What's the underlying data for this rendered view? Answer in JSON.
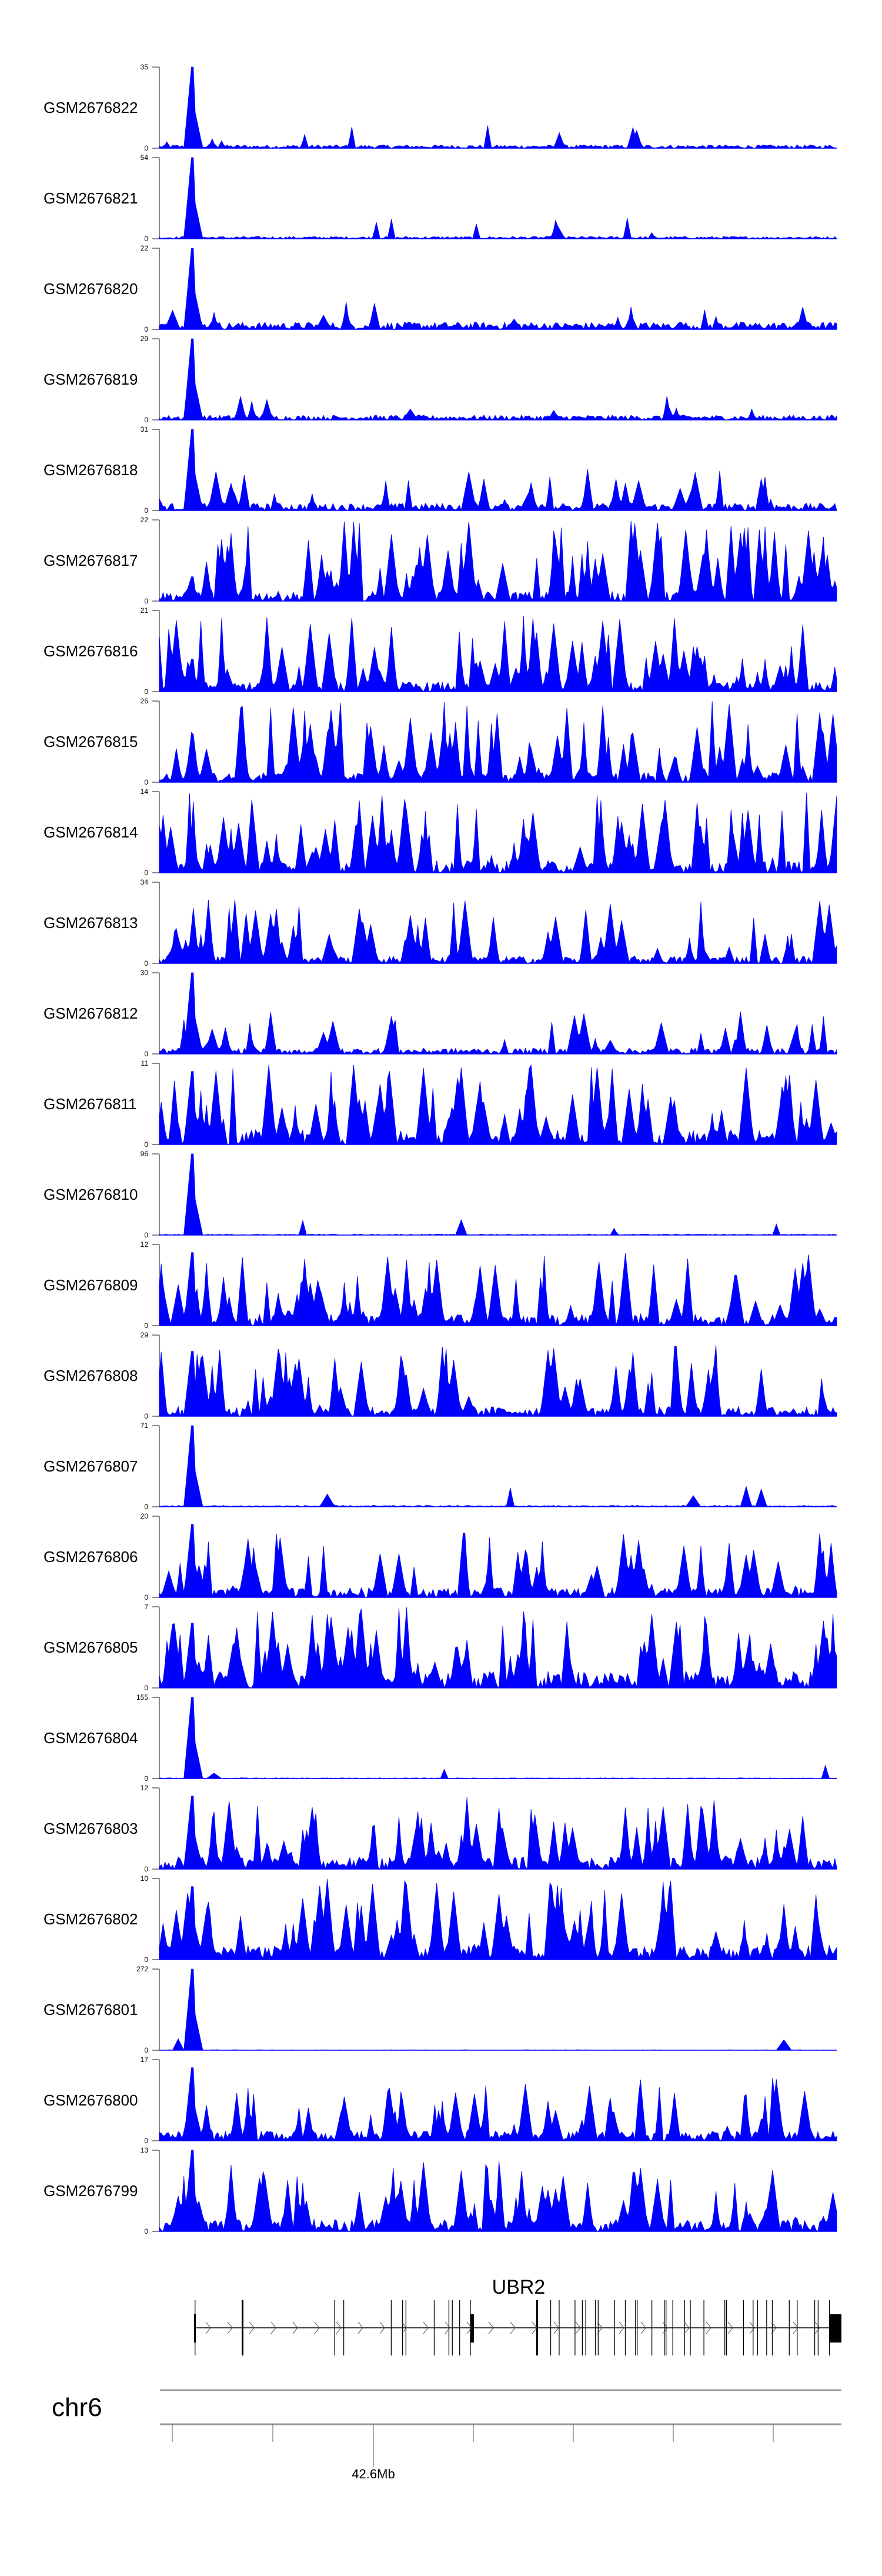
{
  "chart_data": {
    "type": "area",
    "title": "",
    "color": "#0000ff",
    "ymin": 0,
    "tracks": [
      {
        "name": "GSM2676822",
        "ymax": 35,
        "peak": 1.0,
        "bg": 0.07,
        "spiky": 0.1
      },
      {
        "name": "GSM2676821",
        "ymax": 54,
        "peak": 1.0,
        "bg": 0.05,
        "spiky": 0.08
      },
      {
        "name": "GSM2676820",
        "ymax": 22,
        "peak": 1.0,
        "bg": 0.15,
        "spiky": 0.15
      },
      {
        "name": "GSM2676819",
        "ymax": 29,
        "peak": 1.0,
        "bg": 0.1,
        "spiky": 0.12
      },
      {
        "name": "GSM2676818",
        "ymax": 31,
        "peak": 1.0,
        "bg": 0.15,
        "spiky": 0.35
      },
      {
        "name": "GSM2676817",
        "ymax": 22,
        "peak": 0.3,
        "bg": 0.2,
        "spiky": 0.8
      },
      {
        "name": "GSM2676816",
        "ymax": 21,
        "peak": 0.4,
        "bg": 0.2,
        "spiky": 0.75
      },
      {
        "name": "GSM2676815",
        "ymax": 26,
        "peak": 0.4,
        "bg": 0.2,
        "spiky": 0.8
      },
      {
        "name": "GSM2676814",
        "ymax": 14,
        "peak": 0.5,
        "bg": 0.25,
        "spiky": 0.85
      },
      {
        "name": "GSM2676813",
        "ymax": 34,
        "peak": 0.3,
        "bg": 0.15,
        "spiky": 0.6
      },
      {
        "name": "GSM2676812",
        "ymax": 30,
        "peak": 1.0,
        "bg": 0.12,
        "spiky": 0.35
      },
      {
        "name": "GSM2676811",
        "ymax": 11,
        "peak": 0.9,
        "bg": 0.3,
        "spiky": 0.8
      },
      {
        "name": "GSM2676810",
        "ymax": 96,
        "peak": 1.0,
        "bg": 0.02,
        "spiky": 0.04
      },
      {
        "name": "GSM2676809",
        "ymax": 12,
        "peak": 0.9,
        "bg": 0.25,
        "spiky": 0.7
      },
      {
        "name": "GSM2676808",
        "ymax": 29,
        "peak": 0.8,
        "bg": 0.2,
        "spiky": 0.7
      },
      {
        "name": "GSM2676807",
        "ymax": 71,
        "peak": 1.0,
        "bg": 0.03,
        "spiky": 0.05
      },
      {
        "name": "GSM2676806",
        "ymax": 20,
        "peak": 0.9,
        "bg": 0.2,
        "spiky": 0.6
      },
      {
        "name": "GSM2676805",
        "ymax": 7,
        "peak": 0.8,
        "bg": 0.35,
        "spiky": 0.9
      },
      {
        "name": "GSM2676804",
        "ymax": 155,
        "peak": 1.0,
        "bg": 0.015,
        "spiky": 0.03
      },
      {
        "name": "GSM2676803",
        "ymax": 12,
        "peak": 0.9,
        "bg": 0.25,
        "spiky": 0.7
      },
      {
        "name": "GSM2676802",
        "ymax": 10,
        "peak": 0.9,
        "bg": 0.3,
        "spiky": 0.8
      },
      {
        "name": "GSM2676801",
        "ymax": 272,
        "peak": 1.0,
        "bg": 0.01,
        "spiky": 0.02
      },
      {
        "name": "GSM2676800",
        "ymax": 17,
        "peak": 0.9,
        "bg": 0.2,
        "spiky": 0.6
      },
      {
        "name": "GSM2676799",
        "ymax": 13,
        "peak": 1.0,
        "bg": 0.25,
        "spiky": 0.7
      }
    ],
    "zero_label": "0",
    "gene": {
      "name": "UBR2",
      "strand": "+"
    },
    "chromosome": "chr6",
    "axis_label": "42.6Mb"
  }
}
